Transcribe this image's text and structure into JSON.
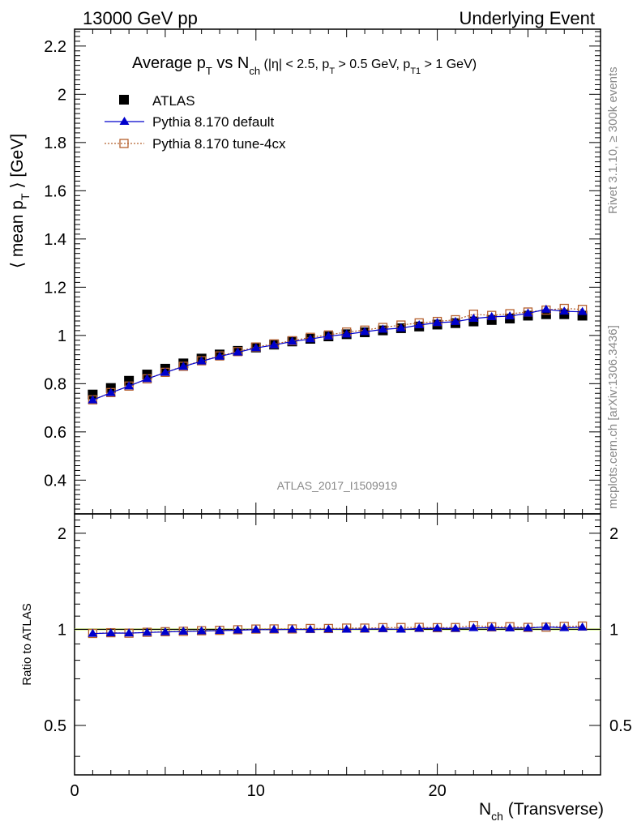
{
  "header": {
    "left": "13000 GeV pp",
    "right": "Underlying Event"
  },
  "title": {
    "prefix": "Average p",
    "prefix_sub": "T",
    "vs": " vs N",
    "vs_sub": "ch",
    "cuts_a": " (|η| < 2.5, p",
    "cuts_a_sub": "T",
    "cuts_b": " > 0.5 GeV, p",
    "cuts_b_sub": "T1",
    "cuts_c": " > 1 GeV)"
  },
  "side_labels": {
    "rivet": "Rivet 3.1.10, ≥ 300k events",
    "mcplots": "mcplots.cern.ch [arXiv:1306.3436]"
  },
  "watermark": "ATLAS_2017_I1509919",
  "colors": {
    "atlas": "#000000",
    "default": "#0000cc",
    "tune": "#b5602e",
    "ratio_band": "#c8f050",
    "ratio_line": "#0000cc"
  },
  "chart_data": [
    {
      "type": "scatter",
      "panel": "main",
      "ylabel_a": "⟨ mean p",
      "ylabel_sub": "T",
      "ylabel_b": " ⟩ [GeV]",
      "ylim": [
        0.26,
        2.27
      ],
      "yticks": [
        0.4,
        0.6,
        0.8,
        1,
        1.2,
        1.4,
        1.6,
        1.8,
        2,
        2.2
      ],
      "ytick_labels": [
        "0.4",
        "0.6",
        "0.8",
        "1",
        "1.2",
        "1.4",
        "1.6",
        "1.8",
        "2",
        "2.2"
      ],
      "xlim": [
        0,
        29
      ],
      "legend_position": "top-left",
      "x": [
        1,
        2,
        3,
        4,
        5,
        6,
        7,
        8,
        9,
        10,
        11,
        12,
        13,
        14,
        15,
        16,
        17,
        18,
        19,
        20,
        21,
        22,
        23,
        24,
        25,
        26,
        27,
        28
      ],
      "series": [
        {
          "name": "ATLAS",
          "marker": "square",
          "values": [
            0.755,
            0.782,
            0.812,
            0.838,
            0.862,
            0.884,
            0.904,
            0.921,
            0.936,
            0.95,
            0.962,
            0.975,
            0.986,
            0.996,
            1.005,
            1.013,
            1.021,
            1.03,
            1.037,
            1.045,
            1.051,
            1.058,
            1.064,
            1.07,
            1.082,
            1.088,
            1.088,
            1.082
          ]
        },
        {
          "name": "Pythia 8.170 default",
          "marker": "triangle",
          "values": [
            0.732,
            0.762,
            0.79,
            0.82,
            0.846,
            0.871,
            0.893,
            0.913,
            0.93,
            0.948,
            0.96,
            0.975,
            0.985,
            0.997,
            1.005,
            1.015,
            1.025,
            1.03,
            1.043,
            1.053,
            1.057,
            1.07,
            1.077,
            1.08,
            1.092,
            1.108,
            1.1,
            1.098
          ]
        },
        {
          "name": "Pythia 8.170 tune-4cx",
          "marker": "open-square",
          "values": [
            0.733,
            0.763,
            0.79,
            0.82,
            0.847,
            0.872,
            0.895,
            0.915,
            0.933,
            0.952,
            0.965,
            0.978,
            0.992,
            1.002,
            1.014,
            1.022,
            1.033,
            1.043,
            1.052,
            1.058,
            1.065,
            1.088,
            1.083,
            1.09,
            1.097,
            1.105,
            1.112,
            1.108
          ]
        }
      ]
    },
    {
      "type": "scatter",
      "panel": "ratio",
      "ylabel": "Ratio to ATLAS",
      "xlabel": "N",
      "xlabel_sub": "ch",
      "xlabel_tail": " (Transverse)",
      "ylim_log": [
        0.35,
        2.3
      ],
      "yticks": [
        0.5,
        1,
        2
      ],
      "ytick_labels": [
        "0.5",
        "1",
        "2"
      ],
      "xlim": [
        0,
        29
      ],
      "xticks": [
        0,
        10,
        20
      ],
      "xtick_labels": [
        "0",
        "10",
        "20"
      ],
      "x": [
        1,
        2,
        3,
        4,
        5,
        6,
        7,
        8,
        9,
        10,
        11,
        12,
        13,
        14,
        15,
        16,
        17,
        18,
        19,
        20,
        21,
        22,
        23,
        24,
        25,
        26,
        27,
        28
      ],
      "series": [
        {
          "name": "Pythia 8.170 default",
          "marker": "triangle",
          "values": [
            0.97,
            0.974,
            0.973,
            0.978,
            0.981,
            0.985,
            0.988,
            0.991,
            0.994,
            0.998,
            0.998,
            1.0,
            0.999,
            1.001,
            1.0,
            1.002,
            1.004,
            1.0,
            1.006,
            1.008,
            1.006,
            1.011,
            1.012,
            1.009,
            1.009,
            1.018,
            1.011,
            1.015
          ]
        },
        {
          "name": "Pythia 8.170 tune-4cx",
          "marker": "open-square",
          "values": [
            0.971,
            0.976,
            0.973,
            0.979,
            0.983,
            0.986,
            0.99,
            0.993,
            0.997,
            1.002,
            1.003,
            1.003,
            1.006,
            1.006,
            1.009,
            1.009,
            1.012,
            1.013,
            1.014,
            1.012,
            1.013,
            1.028,
            1.018,
            1.019,
            1.014,
            1.016,
            1.022,
            1.024
          ]
        }
      ]
    }
  ]
}
